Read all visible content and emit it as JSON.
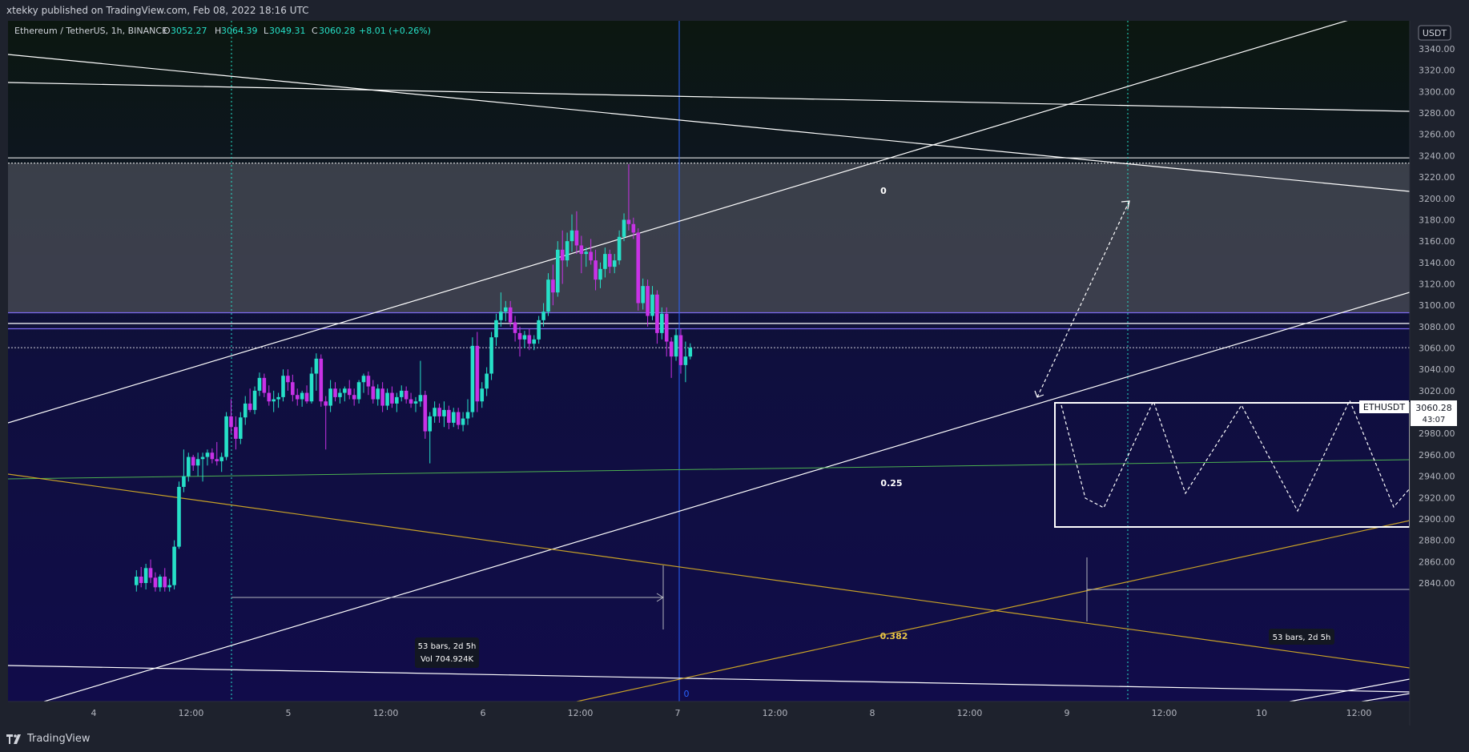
{
  "header": {
    "publisher_text": "xtekky published on TradingView.com, Feb 08, 2022 18:16 UTC"
  },
  "footer": {
    "brand": "TradingView",
    "brand_icon": "tradingview-logo-icon"
  },
  "legend": {
    "symbol": "Ethereum / TetherUS, 1h, BINANCE",
    "open_label": "O",
    "open": "3052.27",
    "high_label": "H",
    "high": "3064.39",
    "low_label": "L",
    "low": "3049.31",
    "close_label": "C",
    "close": "3060.28",
    "change": "+8.01 (+0.26%)"
  },
  "price_axis": {
    "currency": "USDT",
    "ticks": [
      "3340.00",
      "3320.00",
      "3300.00",
      "3280.00",
      "3260.00",
      "3240.00",
      "3220.00",
      "3200.00",
      "3180.00",
      "3160.00",
      "3140.00",
      "3120.00",
      "3100.00",
      "3080.00",
      "3060.00",
      "3040.00",
      "3020.00",
      "3000.00",
      "2980.00",
      "2960.00",
      "2940.00",
      "2920.00",
      "2900.00",
      "2880.00",
      "2860.00",
      "2840.00"
    ],
    "last_symbol": "ETHUSDT",
    "last_price": "3060.28",
    "countdown": "43:07"
  },
  "time_axis": {
    "ticks": [
      "4",
      "12:00",
      "5",
      "12:00",
      "6",
      "12:00",
      "7",
      "12:00",
      "8",
      "12:00",
      "9",
      "12:00",
      "10",
      "12:00"
    ]
  },
  "annotations": {
    "fib_0": "0",
    "fib_025": "0.25",
    "fib_0382": "0.382",
    "date_range_bars": "53 bars, 2d 5h",
    "date_range_vol": "Vol 704.924K",
    "date_range_bars_2": "53 bars, 2d 5h",
    "vline_label": "0"
  },
  "colors": {
    "bull": "#26e0c8",
    "bear": "#c832e6",
    "background_bottom": "#110c4a",
    "background_top": "#0c1710",
    "zone": "#434651",
    "purple_line": "#7b68ee",
    "yellow_line": "#c9a227",
    "green_line": "#4caf50",
    "blue_line": "#2962ff"
  },
  "chart_data": {
    "type": "candlestick",
    "symbol": "Ethereum / TetherUS",
    "interval": "1h",
    "exchange": "BINANCE",
    "ylim": [
      2830,
      3355
    ],
    "candles": [
      {
        "time": "Feb 04 10:00",
        "open": 2838,
        "high": 2852,
        "low": 2832,
        "close": 2846
      },
      {
        "time": "Feb 04 11:00",
        "open": 2846,
        "high": 2855,
        "low": 2836,
        "close": 2840
      },
      {
        "time": "Feb 04 12:00",
        "open": 2840,
        "high": 2858,
        "low": 2834,
        "close": 2854
      },
      {
        "time": "Feb 04 13:00",
        "open": 2854,
        "high": 2862,
        "low": 2840,
        "close": 2845
      },
      {
        "time": "Feb 04 14:00",
        "open": 2845,
        "high": 2850,
        "low": 2832,
        "close": 2836
      },
      {
        "time": "Feb 04 15:00",
        "open": 2836,
        "high": 2848,
        "low": 2832,
        "close": 2846
      },
      {
        "time": "Feb 04 16:00",
        "open": 2846,
        "high": 2854,
        "low": 2832,
        "close": 2836
      },
      {
        "time": "Feb 04 17:00",
        "open": 2836,
        "high": 2844,
        "low": 2832,
        "close": 2838
      },
      {
        "time": "Feb 04 18:00",
        "open": 2838,
        "high": 2880,
        "low": 2834,
        "close": 2874
      },
      {
        "time": "Feb 04 19:00",
        "open": 2874,
        "high": 2935,
        "low": 2872,
        "close": 2930
      },
      {
        "time": "Feb 04 20:00",
        "open": 2930,
        "high": 2965,
        "low": 2925,
        "close": 2940
      },
      {
        "time": "Feb 04 21:00",
        "open": 2940,
        "high": 2962,
        "low": 2935,
        "close": 2958
      },
      {
        "time": "Feb 04 22:00",
        "open": 2958,
        "high": 2960,
        "low": 2945,
        "close": 2950
      },
      {
        "time": "Feb 04 23:00",
        "open": 2950,
        "high": 2962,
        "low": 2940,
        "close": 2956
      },
      {
        "time": "Feb 05 00:00",
        "open": 2956,
        "high": 2962,
        "low": 2935,
        "close": 2958
      },
      {
        "time": "Feb 05 01:00",
        "open": 2958,
        "high": 2965,
        "low": 2950,
        "close": 2962
      },
      {
        "time": "Feb 05 02:00",
        "open": 2962,
        "high": 2966,
        "low": 2952,
        "close": 2956
      },
      {
        "time": "Feb 05 03:00",
        "open": 2956,
        "high": 2972,
        "low": 2950,
        "close": 2954
      },
      {
        "time": "Feb 05 04:00",
        "open": 2954,
        "high": 2962,
        "low": 2944,
        "close": 2958
      },
      {
        "time": "Feb 05 05:00",
        "open": 2958,
        "high": 3000,
        "low": 2955,
        "close": 2996
      },
      {
        "time": "Feb 05 06:00",
        "open": 2996,
        "high": 3012,
        "low": 2980,
        "close": 2986
      },
      {
        "time": "Feb 05 07:00",
        "open": 2986,
        "high": 2996,
        "low": 2965,
        "close": 2975
      },
      {
        "time": "Feb 05 08:00",
        "open": 2975,
        "high": 3000,
        "low": 2970,
        "close": 2995
      },
      {
        "time": "Feb 05 09:00",
        "open": 2995,
        "high": 3015,
        "low": 2988,
        "close": 3008
      },
      {
        "time": "Feb 05 10:00",
        "open": 3008,
        "high": 3022,
        "low": 3000,
        "close": 3002
      },
      {
        "time": "Feb 05 11:00",
        "open": 3002,
        "high": 3024,
        "low": 2998,
        "close": 3020
      },
      {
        "time": "Feb 05 12:00",
        "open": 3020,
        "high": 3037,
        "low": 3015,
        "close": 3032
      },
      {
        "time": "Feb 05 13:00",
        "open": 3032,
        "high": 3036,
        "low": 3014,
        "close": 3018
      },
      {
        "time": "Feb 05 14:00",
        "open": 3018,
        "high": 3025,
        "low": 3006,
        "close": 3010
      },
      {
        "time": "Feb 05 15:00",
        "open": 3010,
        "high": 3020,
        "low": 3000,
        "close": 3012
      },
      {
        "time": "Feb 05 16:00",
        "open": 3012,
        "high": 3018,
        "low": 3004,
        "close": 3014
      },
      {
        "time": "Feb 05 17:00",
        "open": 3014,
        "high": 3040,
        "low": 3010,
        "close": 3034
      },
      {
        "time": "Feb 05 18:00",
        "open": 3034,
        "high": 3040,
        "low": 3020,
        "close": 3028
      },
      {
        "time": "Feb 05 19:00",
        "open": 3028,
        "high": 3035,
        "low": 3010,
        "close": 3016
      },
      {
        "time": "Feb 05 20:00",
        "open": 3016,
        "high": 3022,
        "low": 3006,
        "close": 3012
      },
      {
        "time": "Feb 05 21:00",
        "open": 3012,
        "high": 3020,
        "low": 3005,
        "close": 3018
      },
      {
        "time": "Feb 05 22:00",
        "open": 3018,
        "high": 3025,
        "low": 3008,
        "close": 3010
      },
      {
        "time": "Feb 05 23:00",
        "open": 3010,
        "high": 3042,
        "low": 3008,
        "close": 3036
      },
      {
        "time": "Feb 06 00:00",
        "open": 3036,
        "high": 3055,
        "low": 3020,
        "close": 3050
      },
      {
        "time": "Feb 06 01:00",
        "open": 3050,
        "high": 3054,
        "low": 3005,
        "close": 3010
      },
      {
        "time": "Feb 06 02:00",
        "open": 3010,
        "high": 3015,
        "low": 2965,
        "close": 3006
      },
      {
        "time": "Feb 06 03:00",
        "open": 3006,
        "high": 3030,
        "low": 3000,
        "close": 3022
      },
      {
        "time": "Feb 06 04:00",
        "open": 3022,
        "high": 3028,
        "low": 3010,
        "close": 3014
      },
      {
        "time": "Feb 06 05:00",
        "open": 3014,
        "high": 3022,
        "low": 3008,
        "close": 3018
      },
      {
        "time": "Feb 06 06:00",
        "open": 3018,
        "high": 3024,
        "low": 3010,
        "close": 3022
      },
      {
        "time": "Feb 06 07:00",
        "open": 3022,
        "high": 3030,
        "low": 3012,
        "close": 3016
      },
      {
        "time": "Feb 06 08:00",
        "open": 3016,
        "high": 3022,
        "low": 3006,
        "close": 3012
      },
      {
        "time": "Feb 06 09:00",
        "open": 3012,
        "high": 3030,
        "low": 3008,
        "close": 3028
      },
      {
        "time": "Feb 06 10:00",
        "open": 3028,
        "high": 3036,
        "low": 3018,
        "close": 3034
      },
      {
        "time": "Feb 06 11:00",
        "open": 3034,
        "high": 3038,
        "low": 3016,
        "close": 3024
      },
      {
        "time": "Feb 06 12:00",
        "open": 3024,
        "high": 3030,
        "low": 3008,
        "close": 3012
      },
      {
        "time": "Feb 06 13:00",
        "open": 3012,
        "high": 3026,
        "low": 3006,
        "close": 3022
      },
      {
        "time": "Feb 06 14:00",
        "open": 3022,
        "high": 3028,
        "low": 3000,
        "close": 3006
      },
      {
        "time": "Feb 06 15:00",
        "open": 3006,
        "high": 3022,
        "low": 3002,
        "close": 3018
      },
      {
        "time": "Feb 06 16:00",
        "open": 3018,
        "high": 3024,
        "low": 3004,
        "close": 3008
      },
      {
        "time": "Feb 06 17:00",
        "open": 3008,
        "high": 3018,
        "low": 3000,
        "close": 3014
      },
      {
        "time": "Feb 06 18:00",
        "open": 3014,
        "high": 3025,
        "low": 3010,
        "close": 3020
      },
      {
        "time": "Feb 06 19:00",
        "open": 3020,
        "high": 3024,
        "low": 3008,
        "close": 3012
      },
      {
        "time": "Feb 06 20:00",
        "open": 3012,
        "high": 3018,
        "low": 3004,
        "close": 3008
      },
      {
        "time": "Feb 06 21:00",
        "open": 3008,
        "high": 3014,
        "low": 3000,
        "close": 3010
      },
      {
        "time": "Feb 06 22:00",
        "open": 3010,
        "high": 3048,
        "low": 3005,
        "close": 3016
      },
      {
        "time": "Feb 06 23:00",
        "open": 3016,
        "high": 3020,
        "low": 2975,
        "close": 2982
      },
      {
        "time": "Feb 07 00:00",
        "open": 2982,
        "high": 3000,
        "low": 2952,
        "close": 2996
      },
      {
        "time": "Feb 07 01:00",
        "open": 2996,
        "high": 3010,
        "low": 2990,
        "close": 3004
      },
      {
        "time": "Feb 07 02:00",
        "open": 3004,
        "high": 3008,
        "low": 2990,
        "close": 2996
      },
      {
        "time": "Feb 07 03:00",
        "open": 2996,
        "high": 3010,
        "low": 2986,
        "close": 3002
      },
      {
        "time": "Feb 07 04:00",
        "open": 3002,
        "high": 3006,
        "low": 2984,
        "close": 2990
      },
      {
        "time": "Feb 07 05:00",
        "open": 2990,
        "high": 3004,
        "low": 2986,
        "close": 3000
      },
      {
        "time": "Feb 07 06:00",
        "open": 3000,
        "high": 3004,
        "low": 2984,
        "close": 2988
      },
      {
        "time": "Feb 07 07:00",
        "open": 2988,
        "high": 3000,
        "low": 2982,
        "close": 2994
      },
      {
        "time": "Feb 07 08:00",
        "open": 2994,
        "high": 3012,
        "low": 2988,
        "close": 3000
      },
      {
        "time": "Feb 07 09:00",
        "open": 3000,
        "high": 3070,
        "low": 2995,
        "close": 3062
      },
      {
        "time": "Feb 07 10:00",
        "open": 3062,
        "high": 3075,
        "low": 3000,
        "close": 3010
      },
      {
        "time": "Feb 07 11:00",
        "open": 3010,
        "high": 3028,
        "low": 3004,
        "close": 3022
      },
      {
        "time": "Feb 07 12:00",
        "open": 3022,
        "high": 3042,
        "low": 3015,
        "close": 3036
      },
      {
        "time": "Feb 07 13:00",
        "open": 3036,
        "high": 3075,
        "low": 3030,
        "close": 3070
      },
      {
        "time": "Feb 07 14:00",
        "open": 3070,
        "high": 3092,
        "low": 3062,
        "close": 3086
      },
      {
        "time": "Feb 07 15:00",
        "open": 3086,
        "high": 3112,
        "low": 3080,
        "close": 3094
      },
      {
        "time": "Feb 07 16:00",
        "open": 3094,
        "high": 3104,
        "low": 3085,
        "close": 3098
      },
      {
        "time": "Feb 07 17:00",
        "open": 3098,
        "high": 3104,
        "low": 3080,
        "close": 3084
      },
      {
        "time": "Feb 07 18:00",
        "open": 3084,
        "high": 3090,
        "low": 3066,
        "close": 3074
      },
      {
        "time": "Feb 07 19:00",
        "open": 3074,
        "high": 3080,
        "low": 3052,
        "close": 3068
      },
      {
        "time": "Feb 07 20:00",
        "open": 3068,
        "high": 3076,
        "low": 3060,
        "close": 3072
      },
      {
        "time": "Feb 07 21:00",
        "open": 3072,
        "high": 3078,
        "low": 3058,
        "close": 3064
      },
      {
        "time": "Feb 07 22:00",
        "open": 3064,
        "high": 3072,
        "low": 3058,
        "close": 3068
      },
      {
        "time": "Feb 07 23:00",
        "open": 3068,
        "high": 3090,
        "low": 3064,
        "close": 3086
      },
      {
        "time": "Feb 08 00:00",
        "open": 3086,
        "high": 3102,
        "low": 3080,
        "close": 3094
      },
      {
        "time": "Feb 08 01:00",
        "open": 3094,
        "high": 3130,
        "low": 3090,
        "close": 3124
      },
      {
        "time": "Feb 08 02:00",
        "open": 3124,
        "high": 3138,
        "low": 3100,
        "close": 3112
      },
      {
        "time": "Feb 08 03:00",
        "open": 3112,
        "high": 3160,
        "low": 3108,
        "close": 3152
      },
      {
        "time": "Feb 08 04:00",
        "open": 3152,
        "high": 3170,
        "low": 3120,
        "close": 3142
      },
      {
        "time": "Feb 08 05:00",
        "open": 3142,
        "high": 3168,
        "low": 3136,
        "close": 3160
      },
      {
        "time": "Feb 08 06:00",
        "open": 3160,
        "high": 3185,
        "low": 3150,
        "close": 3170
      },
      {
        "time": "Feb 08 07:00",
        "open": 3170,
        "high": 3188,
        "low": 3148,
        "close": 3156
      },
      {
        "time": "Feb 08 08:00",
        "open": 3156,
        "high": 3165,
        "low": 3130,
        "close": 3148
      },
      {
        "time": "Feb 08 09:00",
        "open": 3148,
        "high": 3154,
        "low": 3136,
        "close": 3150
      },
      {
        "time": "Feb 08 10:00",
        "open": 3150,
        "high": 3162,
        "low": 3138,
        "close": 3142
      },
      {
        "time": "Feb 08 11:00",
        "open": 3142,
        "high": 3152,
        "low": 3114,
        "close": 3124
      },
      {
        "time": "Feb 08 12:00",
        "open": 3124,
        "high": 3140,
        "low": 3116,
        "close": 3134
      },
      {
        "time": "Feb 08 13:00",
        "open": 3134,
        "high": 3154,
        "low": 3126,
        "close": 3148
      },
      {
        "time": "Feb 08 14:00",
        "open": 3148,
        "high": 3152,
        "low": 3130,
        "close": 3136
      },
      {
        "time": "Feb 08 15:00",
        "open": 3136,
        "high": 3148,
        "low": 3130,
        "close": 3142
      },
      {
        "time": "Feb 08 16:00",
        "open": 3142,
        "high": 3170,
        "low": 3138,
        "close": 3164
      },
      {
        "time": "Feb 08 17:00",
        "open": 3164,
        "high": 3186,
        "low": 3160,
        "close": 3180
      },
      {
        "time": "Feb 08 18:00",
        "open": 3180,
        "high": 3232,
        "low": 3170,
        "close": 3176
      },
      {
        "time": "Feb 08 19:00",
        "open": 3176,
        "high": 3182,
        "low": 3162,
        "close": 3168
      },
      {
        "time": "Feb 08 20:00",
        "open": 3168,
        "high": 3172,
        "low": 3095,
        "close": 3102
      },
      {
        "time": "Feb 08 21:00",
        "open": 3102,
        "high": 3125,
        "low": 3096,
        "close": 3118
      },
      {
        "time": "Feb 08 22:00",
        "open": 3118,
        "high": 3124,
        "low": 3080,
        "close": 3090
      },
      {
        "time": "Feb 08 23:00",
        "open": 3090,
        "high": 3118,
        "low": 3086,
        "close": 3110
      },
      {
        "time": "Feb 09 00:00",
        "open": 3110,
        "high": 3114,
        "low": 3064,
        "close": 3074
      },
      {
        "time": "Feb 09 01:00",
        "open": 3074,
        "high": 3098,
        "low": 3068,
        "close": 3092
      },
      {
        "time": "Feb 09 02:00",
        "open": 3092,
        "high": 3098,
        "low": 3052,
        "close": 3066
      },
      {
        "time": "Feb 09 03:00",
        "open": 3066,
        "high": 3070,
        "low": 3032,
        "close": 3052
      },
      {
        "time": "Feb 09 04:00",
        "open": 3052,
        "high": 3078,
        "low": 3048,
        "close": 3072
      },
      {
        "time": "Feb 09 05:00",
        "open": 3072,
        "high": 3078,
        "low": 3036,
        "close": 3044
      },
      {
        "time": "Feb 09 06:00",
        "open": 3044,
        "high": 3066,
        "low": 3028,
        "close": 3052
      },
      {
        "time": "Feb 09 07:00",
        "open": 3052,
        "high": 3064.39,
        "low": 3049.31,
        "close": 3060.28
      }
    ],
    "last_price": 3060.28
  }
}
